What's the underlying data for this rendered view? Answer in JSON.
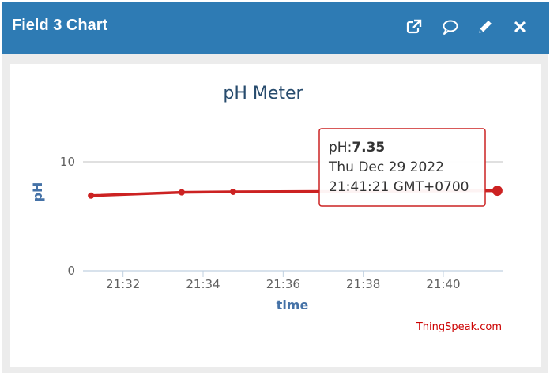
{
  "header": {
    "title": "Field 3 Chart",
    "buttons": [
      {
        "name": "open-external-icon"
      },
      {
        "name": "comment-icon"
      },
      {
        "name": "edit-icon"
      },
      {
        "name": "close-icon"
      }
    ]
  },
  "chart_data": {
    "type": "line",
    "title": "pH Meter",
    "ylabel": "pH",
    "xlabel": "time",
    "ylim": [
      0,
      10
    ],
    "yticks": [
      "0",
      "10"
    ],
    "xticks": [
      "21:32",
      "21:34",
      "21:36",
      "21:38",
      "21:40"
    ],
    "series": [
      {
        "name": "pH",
        "x": [
          "21:31:12",
          "21:33:28",
          "21:34:45",
          "21:41:21"
        ],
        "values": [
          6.9,
          7.2,
          7.25,
          7.35
        ]
      }
    ],
    "line_color": "#cc2222",
    "grid": true
  },
  "tooltip": {
    "label": "pH:",
    "value": "7.35",
    "date": "Thu Dec 29 2022",
    "time": "21:41:21 GMT+0700"
  },
  "credit": "ThingSpeak.com",
  "colors": {
    "header_bg": "#2e7bb4",
    "axis_label": "#4572a7",
    "title": "#274b6d",
    "credit": "#cc0000"
  }
}
